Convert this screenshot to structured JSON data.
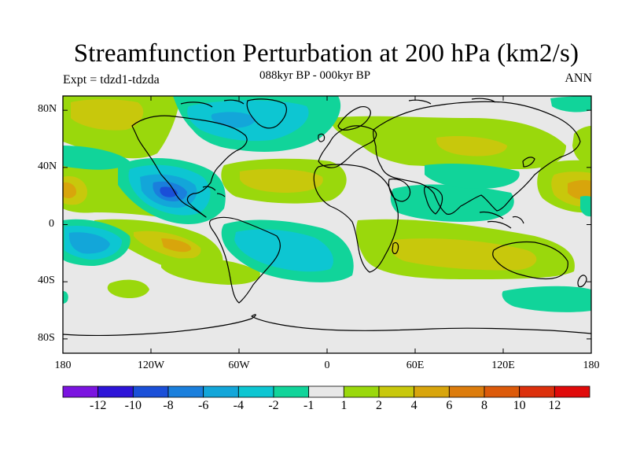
{
  "title": "Streamfunction Perturbation at 200 hPa (km2/s)",
  "subtitle": "088kyr BP - 000kyr BP",
  "experiment": "Expt = tdzd1-tdzda",
  "season": "ANN",
  "map": {
    "projection": "cylindrical equidistant",
    "lon_range": [
      -180,
      180
    ],
    "lat_range": [
      -90,
      90
    ],
    "lat_ticks": [
      {
        "value": 80,
        "label": "80N"
      },
      {
        "value": 40,
        "label": "40N"
      },
      {
        "value": 0,
        "label": "0"
      },
      {
        "value": -40,
        "label": "40S"
      },
      {
        "value": -80,
        "label": "80S"
      }
    ],
    "lon_ticks": [
      {
        "value": -180,
        "label": "180"
      },
      {
        "value": -120,
        "label": "120W"
      },
      {
        "value": -60,
        "label": "60W"
      },
      {
        "value": 0,
        "label": "0"
      },
      {
        "value": 60,
        "label": "60E"
      },
      {
        "value": 120,
        "label": "120E"
      },
      {
        "value": 180,
        "label": "180"
      }
    ],
    "background_color": "#e8e8e8"
  },
  "colorbar": {
    "colors": [
      "#7b14e0",
      "#2d14d8",
      "#1a4fd8",
      "#1a7fdc",
      "#13a6d9",
      "#0dc6d2",
      "#11d49a",
      "#e8e8e8",
      "#9ad80c",
      "#c8c80c",
      "#d8a50c",
      "#dc7c0c",
      "#dc5a0a",
      "#dc300c",
      "#e00a0a"
    ],
    "labels": [
      "-12",
      "-10",
      "-8",
      "-6",
      "-4",
      "-2",
      "-1",
      "1",
      "2",
      "4",
      "6",
      "8",
      "10",
      "12"
    ]
  },
  "chart_data": {
    "type": "heatmap",
    "title": "Streamfunction Perturbation at 200 hPa (km2/s)",
    "subtitle": "088kyr BP - 000kyr BP",
    "variable": "streamfunction perturbation",
    "units": "km2/s",
    "level": "200 hPa",
    "contour_levels": [
      -12,
      -10,
      -8,
      -6,
      -4,
      -2,
      -1,
      1,
      2,
      4,
      6,
      8,
      10,
      12
    ],
    "features": [
      {
        "lon": -100,
        "lat": 20,
        "value": -8,
        "sign": "negative"
      },
      {
        "lon": -165,
        "lat": -15,
        "value": -6,
        "sign": "negative"
      },
      {
        "lon": -60,
        "lat": 70,
        "value": -4,
        "sign": "negative"
      },
      {
        "lon": -170,
        "lat": 20,
        "value": 6,
        "sign": "positive"
      },
      {
        "lon": 175,
        "lat": 20,
        "value": 6,
        "sign": "positive"
      },
      {
        "lon": -120,
        "lat": -20,
        "value": 4,
        "sign": "positive"
      },
      {
        "lon": -20,
        "lat": 25,
        "value": 4,
        "sign": "positive"
      },
      {
        "lon": 90,
        "lat": 50,
        "value": 4,
        "sign": "positive"
      },
      {
        "lon": 90,
        "lat": -25,
        "value": 4,
        "sign": "positive"
      },
      {
        "lon": -30,
        "lat": -25,
        "value": -2,
        "sign": "negative"
      },
      {
        "lon": 100,
        "lat": 20,
        "value": -2,
        "sign": "negative"
      },
      {
        "lon": 120,
        "lat": 55,
        "value": 2,
        "sign": "positive"
      }
    ]
  }
}
